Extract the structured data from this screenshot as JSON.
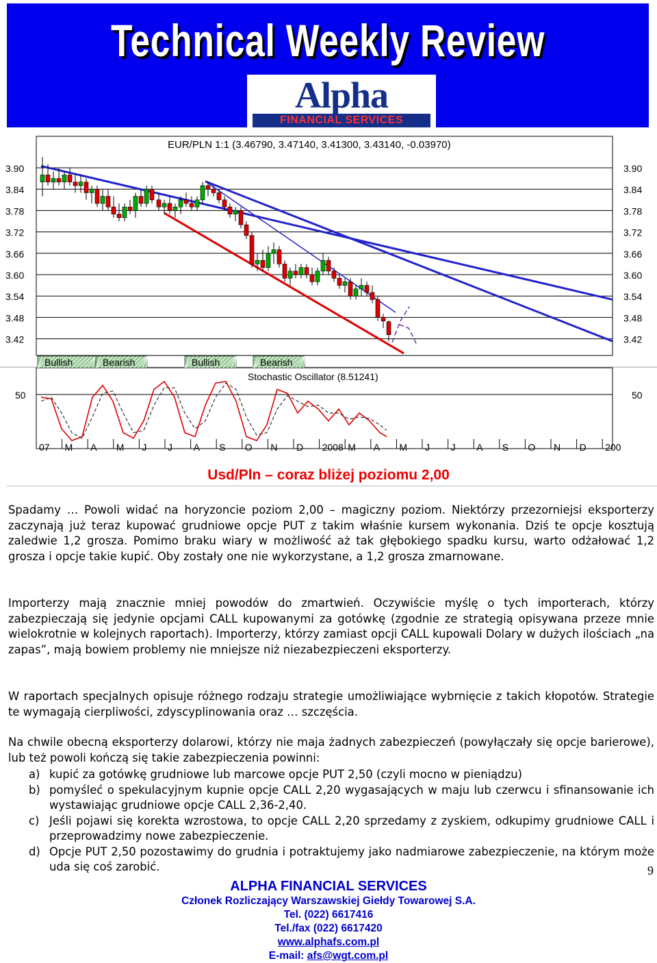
{
  "banner": {
    "title": "Technical Weekly Review",
    "logo_text": "Alpha",
    "logo_subtitle": "FINANCIAL SERVICES"
  },
  "chart": {
    "header": "EUR/PLN 1:1 (3.46790, 3.47140, 3.41300, 3.43140, -0.03970)",
    "ticks": [
      "3.90",
      "3.84",
      "3.78",
      "3.72",
      "3.66",
      "3.60",
      "3.54",
      "3.48",
      "3.42"
    ],
    "signals": [
      "Bullish",
      "Bearish",
      "Bullish",
      "Bearish"
    ],
    "stoch_label": "Stochastic Oscillator (8.51241)",
    "stoch_tick": "50",
    "months": [
      "07",
      "M",
      "A",
      "M",
      "J",
      "J",
      "A",
      "S",
      "O",
      "N",
      "D",
      "2008",
      "M",
      "A",
      "M",
      "J",
      "J",
      "A",
      "S",
      "O",
      "N",
      "D",
      "200"
    ]
  },
  "chart_data": {
    "type": "candlestick",
    "title": "EUR/PLN 1:1 (3.46790, 3.47140, 3.41300, 3.43140, -0.03970)",
    "ylim": [
      3.39,
      3.93
    ],
    "last": {
      "open": 3.4679,
      "high": 3.4714,
      "low": 3.413,
      "close": 3.4314
    },
    "indicator": {
      "name": "Stochastic Oscillator (8.51241)",
      "level": 50
    }
  },
  "article": {
    "heading": "Usd/Pln – coraz bliżej poziomu 2,00",
    "p1": "Spadamy … Powoli widać na horyzoncie poziom 2,00 – magiczny poziom. Niektórzy przezorniejsi eksporterzy zaczynają już teraz kupować grudniowe opcje PUT z takim właśnie kursem wykonania. Dziś te opcje kosztują zaledwie 1,2 grosza. Pomimo braku wiary w możliwość aż tak głębokiego spadku kursu, warto odżałować 1,2 grosza i opcje takie kupić. Oby zostały one nie wykorzystane, a 1,2 grosza zmarnowane.",
    "p2": "Importerzy mają znacznie mniej powodów do zmartwień. Oczywiście myślę o tych importerach, którzy zabezpieczają się jedynie opcjami CALL kupowanymi za gotówkę (zgodnie ze strategią opisywana przeze mnie wielokrotnie w kolejnych raportach). Importerzy, którzy zamiast opcji CALL kupowali Dolary w dużych ilościach „na zapas”, mają bowiem problemy nie mniejsze niż niezabezpieczeni eksporterzy.",
    "p3": "W raportach specjalnych opisuje różnego rodzaju strategie umożliwiające wybrnięcie z takich kłopotów. Strategie te wymagają cierpliwości, zdyscyplinowania oraz … szczęścia.",
    "p4": "Na chwile obecną eksporterzy dolarowi, którzy nie maja żadnych zabezpieczeń (powyłączały się opcje barierowe), lub też powoli kończą się takie zabezpieczenia powinni:",
    "list": [
      {
        "marker": "a)",
        "text": "kupić za gotówkę grudniowe lub marcowe opcje PUT 2,50 (czyli mocno w pieniądzu)"
      },
      {
        "marker": "b)",
        "text": "pomyśleć o spekulacyjnym kupnie opcje CALL 2,20 wygasających w maju lub czerwcu i sfinansowanie ich wystawiając grudniowe opcje CALL 2,36-2,40."
      },
      {
        "marker": "c)",
        "text": "Jeśli pojawi się korekta wzrostowa, to opcje CALL 2,20 sprzedamy z zyskiem, odkupimy grudniowe CALL i przeprowadzimy nowe zabezpieczenie."
      },
      {
        "marker": "d)",
        "text": "Opcje PUT 2,50 pozostawimy do grudnia i potraktujemy jako nadmiarowe zabezpieczenie, na którym może uda się coś zarobić."
      }
    ]
  },
  "page_number": "9",
  "footer": {
    "company": "ALPHA FINANCIAL SERVICES",
    "member": "Członek Rozliczający Warszawskiej Giełdy Towarowej S.A.",
    "tel": "Tel. (022) 6617416",
    "fax": "Tel./fax (022) 6617420",
    "www": "www.alphafs.com.pl",
    "email_label": "E-mail: ",
    "email": "afs@wgt.com.pl"
  }
}
